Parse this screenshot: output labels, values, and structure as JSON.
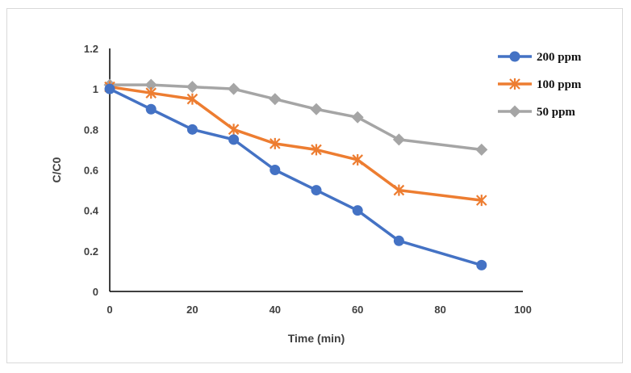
{
  "chart_data": {
    "type": "line",
    "xlabel": "Time (min)",
    "ylabel": "C/C0",
    "xlim": [
      0,
      100
    ],
    "ylim": [
      0,
      1.2
    ],
    "xticks": [
      "0",
      "20",
      "40",
      "60",
      "80",
      "100"
    ],
    "yticks": [
      "0",
      "0.2",
      "0.4",
      "0.6",
      "0.8",
      "1",
      "1.2"
    ],
    "grid": false,
    "legend_position": "top-right",
    "series": [
      {
        "name": "200 ppm",
        "color": "#4472c4",
        "marker": "circle",
        "x": [
          0,
          10,
          20,
          30,
          40,
          50,
          60,
          70,
          90
        ],
        "y": [
          1.0,
          0.9,
          0.8,
          0.75,
          0.6,
          0.5,
          0.4,
          0.25,
          0.13
        ]
      },
      {
        "name": "100 ppm",
        "color": "#ed7d31",
        "marker": "star",
        "x": [
          0,
          10,
          20,
          30,
          40,
          50,
          60,
          70,
          90
        ],
        "y": [
          1.01,
          0.98,
          0.95,
          0.8,
          0.73,
          0.7,
          0.65,
          0.5,
          0.45
        ]
      },
      {
        "name": "50 ppm",
        "color": "#a5a5a5",
        "marker": "diamond",
        "x": [
          0,
          10,
          20,
          30,
          40,
          50,
          60,
          70,
          90
        ],
        "y": [
          1.02,
          1.02,
          1.01,
          1.0,
          0.95,
          0.9,
          0.86,
          0.75,
          0.7
        ]
      }
    ]
  }
}
